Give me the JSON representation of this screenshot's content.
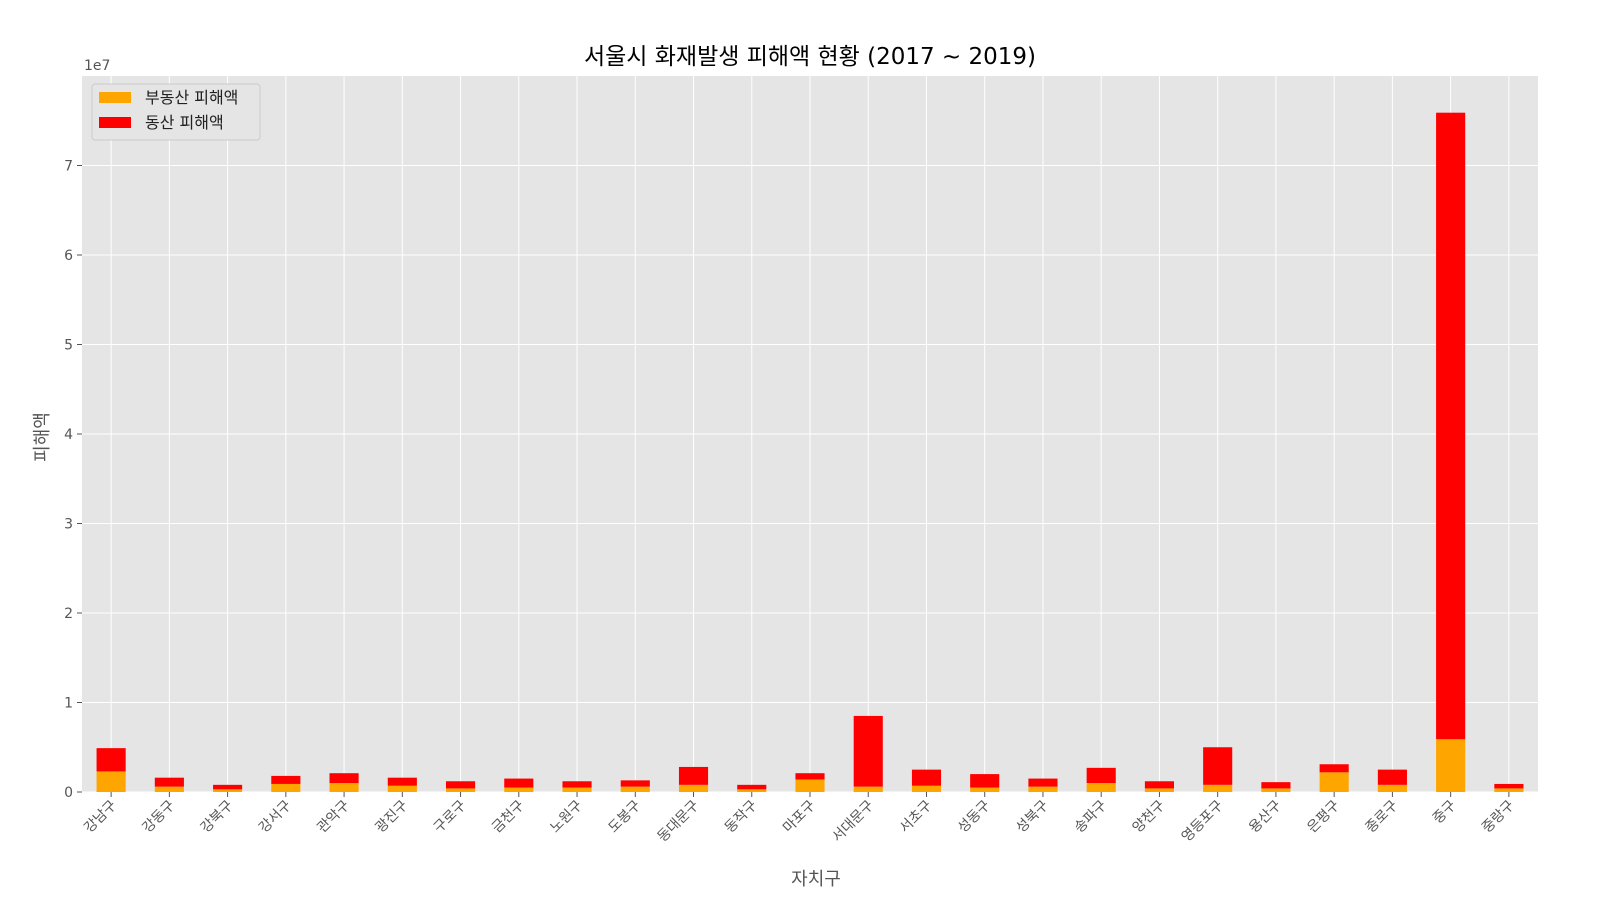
{
  "chart_data": {
    "type": "bar",
    "stacked": true,
    "title": "서울시 화재발생 피해액 현황 (2017 ~ 2019)",
    "xlabel": "자치구",
    "ylabel": "피해액",
    "y_offset_text": "1e7",
    "ylim": [
      0,
      80000000
    ],
    "yticks": [
      0,
      10000000,
      20000000,
      30000000,
      40000000,
      50000000,
      60000000,
      70000000
    ],
    "ytick_labels": [
      "0",
      "1",
      "2",
      "3",
      "4",
      "5",
      "6",
      "7"
    ],
    "grid": true,
    "legend_position": "top-left",
    "categories": [
      "강남구",
      "강동구",
      "강북구",
      "강서구",
      "관악구",
      "광진구",
      "구로구",
      "금천구",
      "노원구",
      "도봉구",
      "동대문구",
      "동작구",
      "마포구",
      "서대문구",
      "서초구",
      "성동구",
      "성북구",
      "송파구",
      "양천구",
      "영등포구",
      "용산구",
      "은평구",
      "종로구",
      "중구",
      "중랑구"
    ],
    "series": [
      {
        "name": "부동산 피해액",
        "color": "#FFA500",
        "values": [
          2300000,
          600000,
          300000,
          900000,
          1000000,
          700000,
          400000,
          500000,
          500000,
          600000,
          800000,
          300000,
          1400000,
          600000,
          700000,
          500000,
          600000,
          1000000,
          400000,
          800000,
          400000,
          2200000,
          800000,
          5900000,
          400000
        ]
      },
      {
        "name": "동산 피해액",
        "color": "#FF0000",
        "values": [
          2600000,
          1000000,
          500000,
          900000,
          1100000,
          900000,
          800000,
          1000000,
          700000,
          700000,
          2000000,
          500000,
          700000,
          7900000,
          1800000,
          1500000,
          900000,
          1700000,
          800000,
          4200000,
          700000,
          900000,
          1700000,
          70000000,
          500000
        ]
      }
    ]
  }
}
